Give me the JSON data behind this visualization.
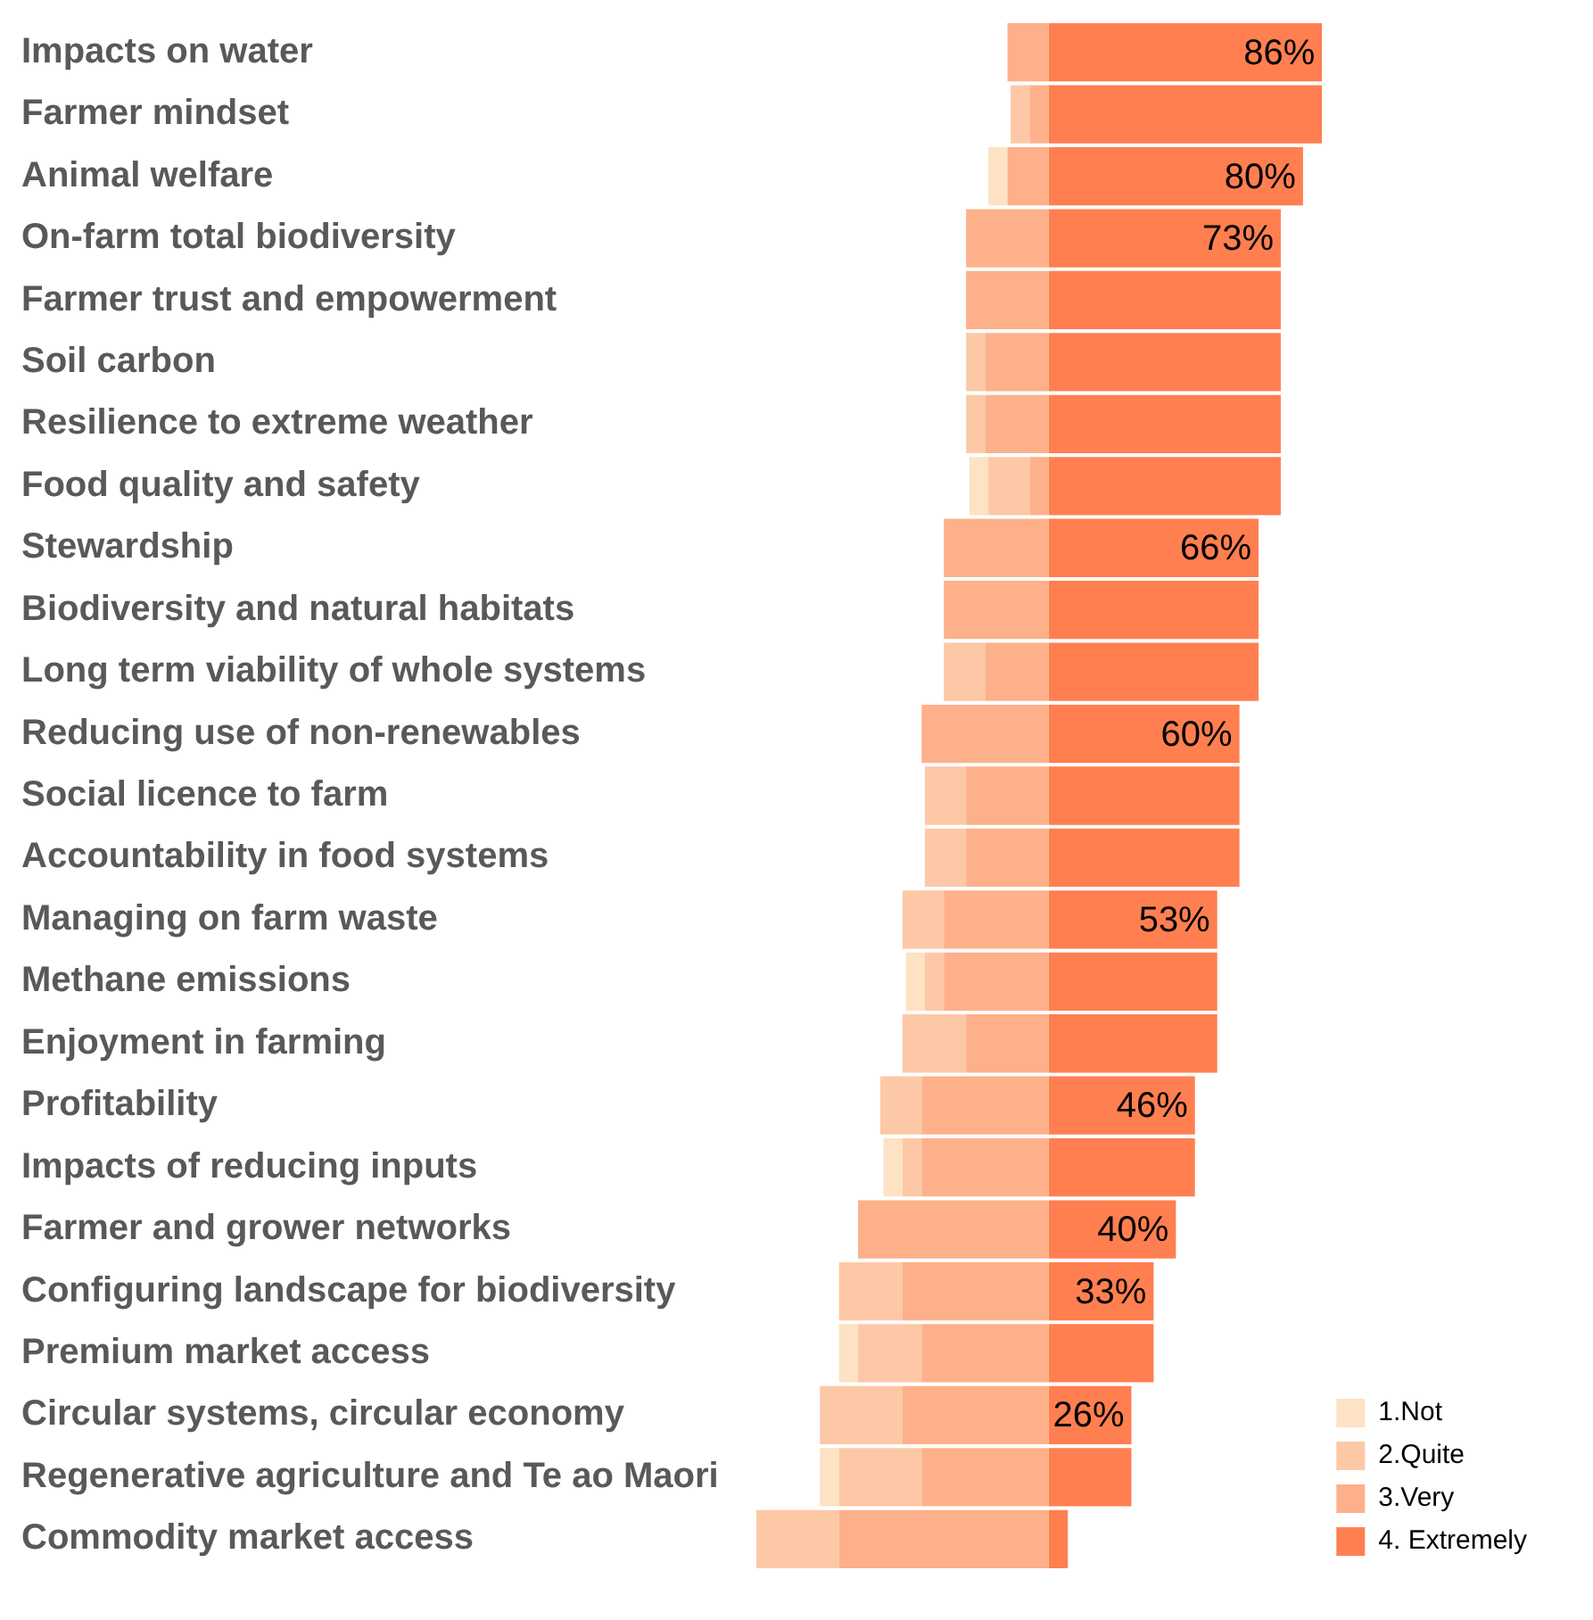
{
  "chart_data": {
    "type": "bar",
    "orientation": "horizontal",
    "stacked": true,
    "legend": "bottom right",
    "categories": [
      "Impacts on water",
      "Farmer mindset",
      "Animal welfare",
      "On-farm total biodiversity",
      "Farmer trust and empowerment",
      "Soil carbon",
      "Resilience to extreme weather",
      "Food quality and safety",
      "Stewardship",
      "Biodiversity and natural habitats",
      "Long term viability of whole systems",
      "Reducing use of non-renewables",
      "Social licence to farm",
      "Accountability in food systems",
      "Managing on farm waste",
      "Methane emissions",
      "Enjoyment in farming",
      "Profitability",
      "Impacts of reducing inputs",
      "Farmer and grower networks",
      "Configuring landscape for biodiversity",
      "Premium market access",
      "Circular systems, circular economy",
      "Regenerative agriculture and Te ao Maori",
      "Commodity market access"
    ],
    "series": [
      {
        "name": "3.Very",
        "color": "#fdb08a",
        "values": [
          -13,
          -6,
          -13,
          -26,
          -26,
          -20,
          -20,
          -6,
          -33,
          -33,
          -20,
          -40,
          -26,
          -26,
          -33,
          -33,
          -26,
          -40,
          -40,
          -60,
          -46,
          -40,
          -46,
          -40,
          -66
        ]
      },
      {
        "name": "2.Quite",
        "color": "#fdc8a6",
        "values": [
          0,
          -6,
          0,
          0,
          0,
          -6,
          -6,
          -13,
          0,
          0,
          -13,
          0,
          -13,
          -13,
          -13,
          -6,
          -20,
          -13,
          -6,
          0,
          -20,
          -20,
          -26,
          -26,
          -26
        ]
      },
      {
        "name": "1.Not",
        "color": "#fde2c4",
        "values": [
          0,
          0,
          -6,
          0,
          0,
          0,
          0,
          -6,
          0,
          0,
          0,
          0,
          0,
          0,
          0,
          -6,
          0,
          0,
          -6,
          0,
          0,
          -6,
          0,
          -6,
          0
        ]
      },
      {
        "name": "4. Extremely",
        "color": "#ff7f50",
        "values": [
          86,
          86,
          80,
          73,
          73,
          73,
          73,
          73,
          66,
          66,
          66,
          60,
          60,
          60,
          53,
          53,
          53,
          46,
          46,
          40,
          33,
          33,
          26,
          26,
          6
        ],
        "value_labels": [
          "86%",
          null,
          "80%",
          "73%",
          null,
          null,
          null,
          null,
          "66%",
          null,
          null,
          "60%",
          null,
          null,
          "53%",
          null,
          null,
          "46%",
          null,
          "40%",
          "33%",
          null,
          "26%",
          null,
          null
        ]
      }
    ]
  }
}
